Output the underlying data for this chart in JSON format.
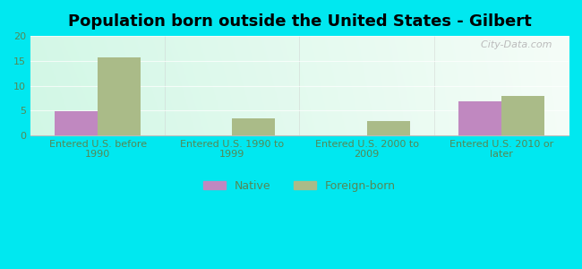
{
  "title": "Population born outside the United States - Gilbert",
  "categories": [
    "Entered U.S. before\n1990",
    "Entered U.S. 1990 to\n1999",
    "Entered U.S. 2000 to\n2009",
    "Entered U.S. 2010 or\nlater"
  ],
  "native_values": [
    4.8,
    0,
    0,
    6.9
  ],
  "foreign_values": [
    15.6,
    3.4,
    2.8,
    7.9
  ],
  "native_color": "#c088c0",
  "foreign_color": "#aabb88",
  "ylim": [
    0,
    20
  ],
  "yticks": [
    0,
    5,
    10,
    15,
    20
  ],
  "bg_outer": "#00e8f0",
  "watermark": "  City-Data.com",
  "legend_native": "Native",
  "legend_foreign": "Foreign-born",
  "bar_width": 0.32,
  "title_fontsize": 13,
  "tick_label_fontsize": 8,
  "axis_label_color": "#558855"
}
